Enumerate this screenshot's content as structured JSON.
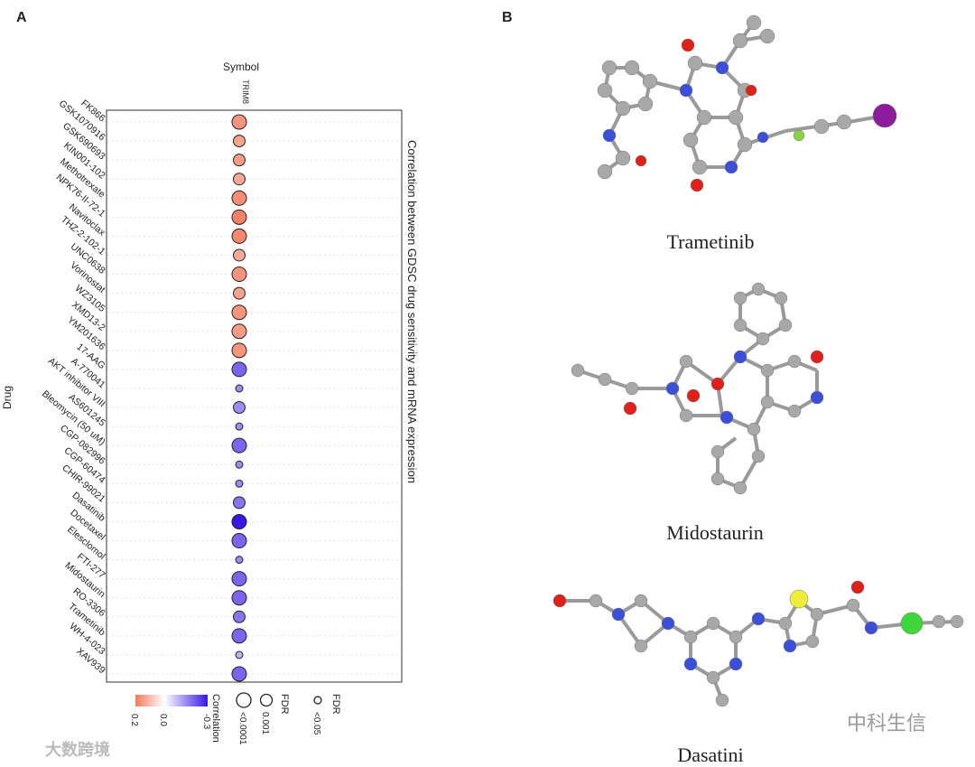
{
  "panels": {
    "a": "A",
    "b": "B"
  },
  "chart_data": {
    "type": "dotplot",
    "title": "Correlation between GDSC drug sensitivity and mRNA expression",
    "x_label": "Symbol",
    "y_label": "Drug",
    "categories": [
      "FK866",
      "GSK1070916",
      "GSK690693",
      "KIN001-102",
      "Methotrexate",
      "NPK76-II-72-1",
      "Navitoclax",
      "THZ-2-102-1",
      "UNC0638",
      "Vorinostat",
      "WZ3105",
      "XMD13-2",
      "YM201636",
      "17-AAG",
      "A-770041",
      "AKT inhibitor VIII",
      "AS601245",
      "Bleomycin (50 uM)",
      "CGP-082996",
      "CGP-60474",
      "CHIR-99021",
      "Dasatinib",
      "Docetaxel",
      "Elesclomol",
      "FTI-277",
      "Midostaurin",
      "RO-3306",
      "Trametinib",
      "WH-4-023",
      "XAV939"
    ],
    "series": [
      {
        "name": "TRIM8",
        "values": [
          0.16,
          0.14,
          0.15,
          0.13,
          0.17,
          0.19,
          0.18,
          0.13,
          0.16,
          0.14,
          0.16,
          0.15,
          0.16,
          -0.2,
          -0.15,
          -0.15,
          -0.15,
          -0.2,
          -0.15,
          -0.15,
          -0.18,
          -0.3,
          -0.2,
          -0.15,
          -0.2,
          -0.2,
          -0.18,
          -0.2,
          -0.1,
          -0.2
        ],
        "fdr": [
          0.0001,
          0.001,
          0.001,
          0.001,
          0.0001,
          0.0001,
          0.0001,
          0.001,
          0.0001,
          0.001,
          0.0001,
          0.0001,
          0.0001,
          0.0001,
          0.05,
          0.001,
          0.05,
          0.0001,
          0.05,
          0.05,
          0.001,
          0.0001,
          0.0001,
          0.05,
          0.0001,
          0.0001,
          0.001,
          0.0001,
          0.05,
          0.0001
        ]
      }
    ],
    "grid": true,
    "color_scale": {
      "title": "Correlation",
      "low": "#3a17e6",
      "mid": "#ffffff",
      "high": "#f47a5c",
      "clim": [
        -0.3,
        0.2
      ],
      "ticks": [
        0.2,
        {
          "value": 0,
          "label": "0.0"
        },
        -0.3
      ]
    },
    "size_legends": [
      {
        "title": "FDR",
        "items": [
          {
            "value": 0.0001,
            "label": "<0.0001"
          },
          {
            "value": 0.001,
            "label": "0.001"
          }
        ]
      },
      {
        "title": "FDR",
        "items": [
          {
            "value": 0.05,
            "label": "<0.05"
          }
        ]
      }
    ]
  },
  "molecules": [
    "Trametinib",
    "Midostaurin",
    "Dasatini"
  ],
  "watermarks": [
    "大数跨境",
    "中科生信"
  ]
}
